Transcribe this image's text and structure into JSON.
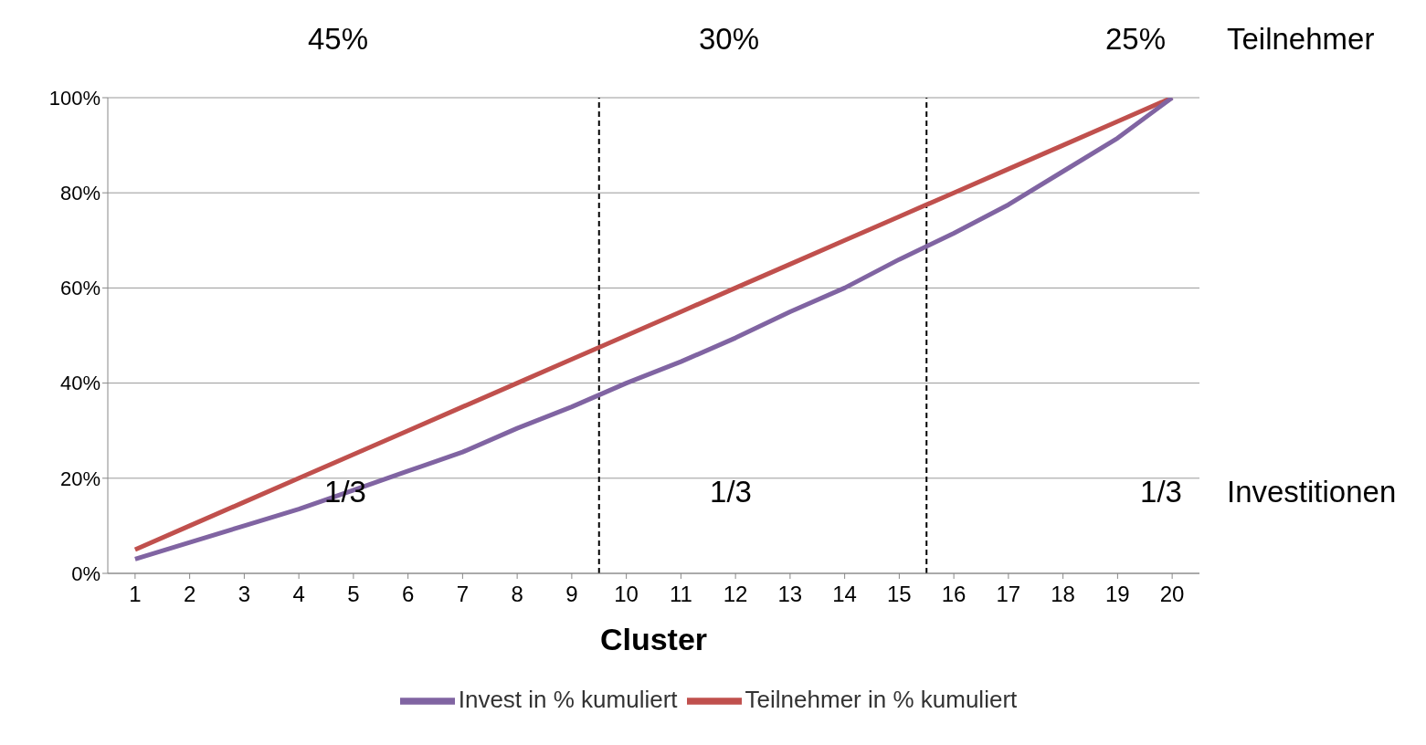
{
  "chart_data": {
    "type": "line",
    "xlabel": "Cluster",
    "x": [
      1,
      2,
      3,
      4,
      5,
      6,
      7,
      8,
      9,
      10,
      11,
      12,
      13,
      14,
      15,
      16,
      17,
      18,
      19,
      20
    ],
    "xlim": [
      0.5,
      20.5
    ],
    "xticks": [
      1,
      2,
      3,
      4,
      5,
      6,
      7,
      8,
      9,
      10,
      11,
      12,
      13,
      14,
      15,
      16,
      17,
      18,
      19,
      20
    ],
    "ylim": [
      0,
      100
    ],
    "yticks": [
      {
        "value": 0,
        "label": "0%"
      },
      {
        "value": 20,
        "label": "20%"
      },
      {
        "value": 40,
        "label": "40%"
      },
      {
        "value": 60,
        "label": "60%"
      },
      {
        "value": 80,
        "label": "80%"
      },
      {
        "value": 100,
        "label": "100%"
      }
    ],
    "series": [
      {
        "name": "Teilnehmer in % kumuliert",
        "color": "#c0504d",
        "values": [
          5,
          10,
          15,
          20,
          25,
          30,
          35,
          40,
          45,
          50,
          55,
          60,
          65,
          70,
          75,
          80,
          85,
          90,
          95,
          100
        ]
      },
      {
        "name": "Invest in % kumuliert",
        "color": "#8064a2",
        "values": [
          3,
          6.5,
          10,
          13.5,
          17.5,
          21.5,
          25.5,
          30.5,
          35,
          40,
          44.5,
          49.5,
          55,
          60,
          66,
          71.5,
          77.5,
          84.5,
          91.5,
          100
        ]
      }
    ],
    "ref_lines": [
      {
        "axis": "x",
        "value": 9.5,
        "color": "#000000",
        "line_style": "dashed"
      },
      {
        "axis": "x",
        "value": 15.5,
        "color": "#000000",
        "line_style": "dashed"
      }
    ],
    "annotations": [
      "45%",
      "30%",
      "25%",
      "Teilnehmer",
      "1/3",
      "1/3",
      "1/3",
      "Investitionen"
    ],
    "grid": "y",
    "legend": "bottom",
    "marker": "none",
    "line_style": "solid"
  }
}
